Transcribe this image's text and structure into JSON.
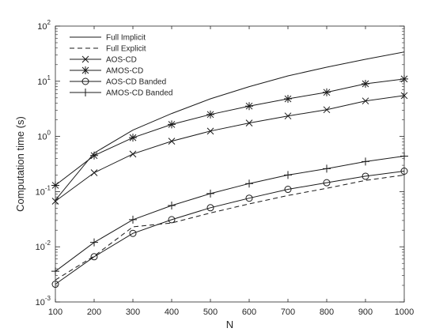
{
  "chart_data": {
    "type": "line",
    "title": "",
    "xlabel": "N",
    "ylabel": "Computation time (s)",
    "x": [
      100,
      200,
      300,
      400,
      500,
      600,
      700,
      800,
      900,
      1000
    ],
    "xlim": [
      100,
      1000
    ],
    "xticks": [
      "100",
      "200",
      "300",
      "400",
      "500",
      "600",
      "700",
      "800",
      "900",
      "1000"
    ],
    "ylim": [
      0.001,
      100
    ],
    "yscale": "log",
    "yticks": [
      {
        "value": 0.001,
        "base": "10",
        "exp": "-3"
      },
      {
        "value": 0.01,
        "base": "10",
        "exp": "-2"
      },
      {
        "value": 0.1,
        "base": "10",
        "exp": "-1"
      },
      {
        "value": 1,
        "base": "10",
        "exp": "0"
      },
      {
        "value": 10,
        "base": "10",
        "exp": "1"
      },
      {
        "value": 100,
        "base": "10",
        "exp": "2"
      }
    ],
    "grid": false,
    "legend_position": "top-left",
    "series": [
      {
        "name": "Full Implicit",
        "line": "solid",
        "marker": "none",
        "values": [
          0.07,
          0.5,
          1.3,
          2.6,
          4.8,
          8.0,
          12.5,
          18.0,
          25.0,
          34.0
        ]
      },
      {
        "name": "Full Explicit",
        "line": "dashed",
        "marker": "none",
        "values": [
          0.0025,
          0.0068,
          0.023,
          0.027,
          0.041,
          0.06,
          0.085,
          0.115,
          0.16,
          0.2
        ]
      },
      {
        "name": "AOS-CD",
        "line": "solid",
        "marker": "x",
        "values": [
          0.067,
          0.22,
          0.48,
          0.82,
          1.25,
          1.75,
          2.35,
          3.05,
          4.4,
          5.5
        ]
      },
      {
        "name": "AMOS-CD",
        "line": "solid",
        "marker": "asterisk",
        "values": [
          0.13,
          0.45,
          0.95,
          1.65,
          2.5,
          3.55,
          4.8,
          6.3,
          9.0,
          11.0
        ]
      },
      {
        "name": "AOS-CD Banded",
        "line": "solid",
        "marker": "circle",
        "values": [
          0.0021,
          0.0066,
          0.0175,
          0.031,
          0.051,
          0.076,
          0.11,
          0.145,
          0.19,
          0.235
        ]
      },
      {
        "name": "AMOS-CD Banded",
        "line": "solid",
        "marker": "plus",
        "values": [
          0.0036,
          0.012,
          0.031,
          0.056,
          0.092,
          0.14,
          0.2,
          0.26,
          0.35,
          0.44
        ]
      }
    ]
  }
}
